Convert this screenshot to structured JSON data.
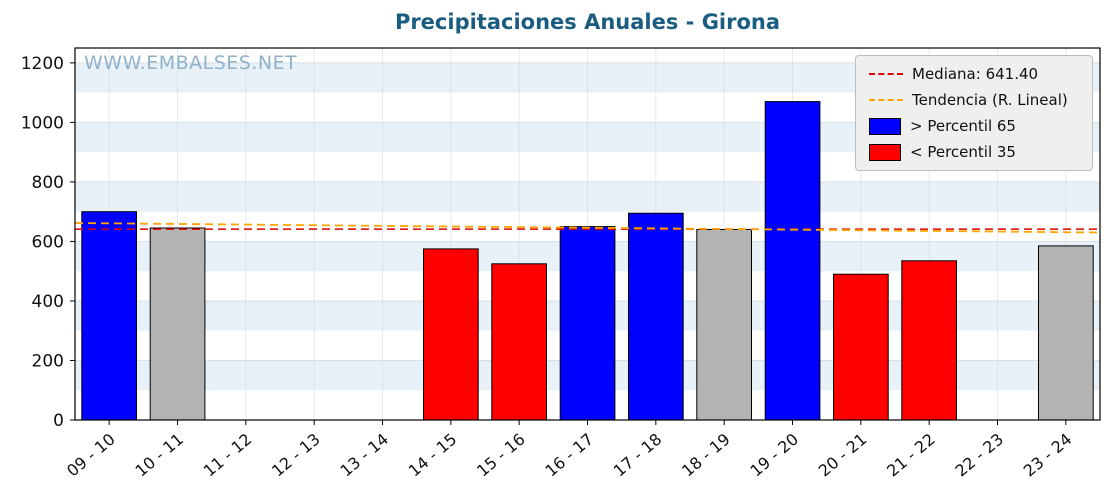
{
  "chart_data": {
    "type": "bar",
    "title": "Precipitaciones Anuales - Girona",
    "watermark": "WWW.EMBALSES.NET",
    "categories": [
      "09 - 10",
      "10 - 11",
      "11 - 12",
      "12 - 13",
      "13 - 14",
      "14 - 15",
      "15 - 16",
      "16 - 17",
      "17 - 18",
      "18 - 19",
      "19 - 20",
      "20 - 21",
      "21 - 22",
      "22 - 23",
      "23 - 24"
    ],
    "values": [
      700,
      645,
      null,
      null,
      null,
      575,
      525,
      650,
      695,
      640,
      1070,
      490,
      535,
      null,
      585
    ],
    "bar_class": [
      "above",
      "mid",
      "none",
      "none",
      "none",
      "below",
      "below",
      "above",
      "above",
      "mid",
      "above",
      "below",
      "below",
      "none",
      "mid"
    ],
    "median": 641.4,
    "trend": {
      "start": 662,
      "end": 630
    },
    "ylim": [
      0,
      1250
    ],
    "yticks": [
      0,
      200,
      400,
      600,
      800,
      1000,
      1200
    ],
    "grid": true,
    "legend_position": "top-right",
    "colors": {
      "above": "#0000ff",
      "below": "#ff0000",
      "mid": "#b3b3b3",
      "median_line": "#dd0000",
      "trend_line": "#ffa500",
      "stripe": "#e9f1f8",
      "title": "#1a5d80",
      "watermark": "#8fb1c9"
    },
    "legend": [
      {
        "label": "Mediana: 641.40",
        "type": "line",
        "color": "#dd0000"
      },
      {
        "label": "Tendencia (R. Lineal)",
        "type": "line",
        "color": "#ffa500"
      },
      {
        "label": "> Percentil 65",
        "type": "patch",
        "color": "#0000ff"
      },
      {
        "label": "< Percentil 35",
        "type": "patch",
        "color": "#ff0000"
      }
    ]
  }
}
